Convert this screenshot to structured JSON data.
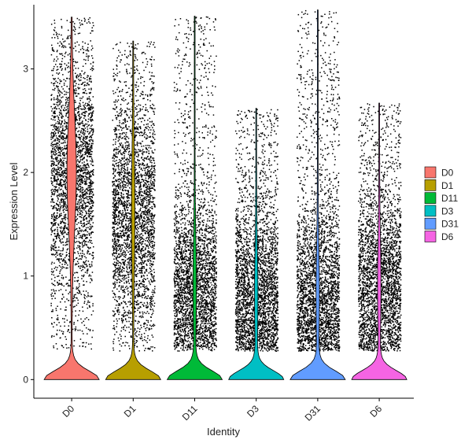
{
  "chart_data": {
    "type": "violin",
    "xlabel": "Identity",
    "ylabel": "Expression Level",
    "ylim": [
      -0.18,
      3.62
    ],
    "yticks": [
      0,
      1,
      2,
      3
    ],
    "categories": [
      "D0",
      "D1",
      "D11",
      "D3",
      "D31",
      "D6"
    ],
    "colors": [
      "#F8766D",
      "#B79F00",
      "#00BA38",
      "#00BFC4",
      "#619CFF",
      "#F564E3"
    ],
    "series": [
      {
        "name": "D0",
        "max": 3.5,
        "zero_fraction": 0.35,
        "upper_peak": 2.0
      },
      {
        "name": "D1",
        "max": 3.27,
        "zero_fraction": 0.55,
        "upper_peak": 1.6
      },
      {
        "name": "D11",
        "max": 3.51,
        "zero_fraction": 0.3,
        "upper_peak": 0.9
      },
      {
        "name": "D3",
        "max": 2.62,
        "zero_fraction": 0.55,
        "upper_peak": 0.8
      },
      {
        "name": "D31",
        "max": 3.57,
        "zero_fraction": 0.3,
        "upper_peak": 0.8
      },
      {
        "name": "D6",
        "max": 2.67,
        "zero_fraction": 0.55,
        "upper_peak": 0.9
      }
    ],
    "grid": false,
    "legend_position": "right"
  }
}
